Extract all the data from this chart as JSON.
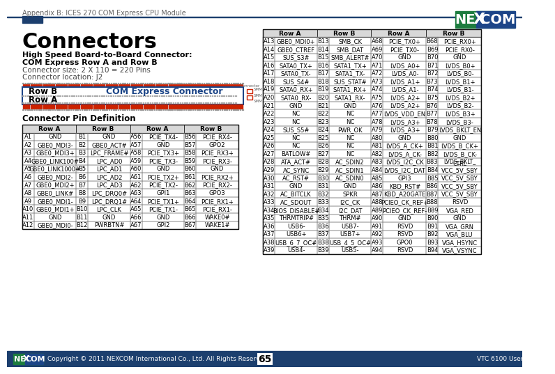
{
  "page_header": "Appendix B: ICES 270 COM Express CPU Module",
  "title": "Connectors",
  "subtitle1": "High Speed Board-to-Board Connector:",
  "subtitle2": "COM Express Row A and Row B",
  "subtitle3": "Connector size: 2 X 110 = 220 Pins",
  "subtitle4": "Connector location: J2",
  "connector_label": "COM Express Connector",
  "connector_row_b": "Row B",
  "connector_row_a": "Row A",
  "section_title": "Connector Pin Definition",
  "copyright": "Copyright © 2011 NEXCOM International Co., Ltd. All Rights Reserved.",
  "page_num": "65",
  "product": "VTC 6100 User Manual",
  "left_table": [
    [
      "A1",
      "GND",
      "B1",
      "GND",
      "A56",
      "PCIE_TX4-",
      "B56",
      "PCIE_RX4-"
    ],
    [
      "A2",
      "GBE0_MDI3-",
      "B2",
      "GBE0_ACT#",
      "A57",
      "GND",
      "B57",
      "GPO2"
    ],
    [
      "A3",
      "GBE0_MDI3+",
      "B3",
      "LPC_FRAME#",
      "A58",
      "PCIE_TX3+",
      "B58",
      "PCIE_RX3+"
    ],
    [
      "A4",
      "GBE0_LINK100#",
      "B4",
      "LPC_AD0",
      "A59",
      "PCIE_TX3-",
      "B59",
      "PCIE_RX3-"
    ],
    [
      "A5",
      "GBE0_LINK1000#",
      "B5",
      "LPC_AD1",
      "A60",
      "GND",
      "B60",
      "GND"
    ],
    [
      "A6",
      "GBE0_MDI2-",
      "B6",
      "LPC_AD2",
      "A61",
      "PCIE_TX2+",
      "B61",
      "PCIE_RX2+"
    ],
    [
      "A7",
      "GBE0_MDI2+",
      "B7",
      "LPC_AD3",
      "A62",
      "PCIE_TX2-",
      "B62",
      "PCIE_RX2-"
    ],
    [
      "A8",
      "GBE0_LINK#",
      "B8",
      "LPC_DRQ0#",
      "A63",
      "GPI1",
      "B63",
      "GPO3"
    ],
    [
      "A9",
      "GBE0_MDI1-",
      "B9",
      "LPC_DRQ1#",
      "A64",
      "PCIE_TX1+",
      "B64",
      "PCIE_RX1+"
    ],
    [
      "A10",
      "GBE0_MDI1+",
      "B10",
      "LPC_CLK",
      "A65",
      "PCIE_TX1-",
      "B65",
      "PCIE_RX1-"
    ],
    [
      "A11",
      "GND",
      "B11",
      "GND",
      "A66",
      "GND",
      "B66",
      "WAKE0#"
    ],
    [
      "A12",
      "GBE0_MDI0-",
      "B12",
      "PWRBTN#",
      "A67",
      "GPI2",
      "B67",
      "WAKE1#"
    ]
  ],
  "right_table": [
    [
      "A13",
      "GBE0_MDI0+",
      "B13",
      "SMB_CK",
      "A68",
      "PCIE_TX0+",
      "B68",
      "PCIE_RX0+"
    ],
    [
      "A14",
      "GBE0_CTREF",
      "B14",
      "SMB_DAT",
      "A69",
      "PCIE_TX0-",
      "B69",
      "PCIE_RX0-"
    ],
    [
      "A15",
      "SUS_S3#",
      "B15",
      "SMB_ALERT#",
      "A70",
      "GND",
      "B70",
      "GND"
    ],
    [
      "A16",
      "SATA0_TX+",
      "B16",
      "SATA1_TX+",
      "A71",
      "LVDS_A0+",
      "B71",
      "LVDS_B0+"
    ],
    [
      "A17",
      "SATA0_TX-",
      "B17",
      "SATA1_TX-",
      "A72",
      "LVDS_A0-",
      "B72",
      "LVDS_B0-"
    ],
    [
      "A18",
      "SUS_S4#",
      "B18",
      "SUS_STAT#",
      "A73",
      "LVDS_A1+",
      "B73",
      "LVDS_B1+"
    ],
    [
      "A19",
      "SATA0_RX+",
      "B19",
      "SATA1_RX+",
      "A74",
      "LVDS_A1-",
      "B74",
      "LVDS_B1-"
    ],
    [
      "A20",
      "SATA0_RX-",
      "B20",
      "SATA1_RX-",
      "A75",
      "LVDS_A2+",
      "B75",
      "LVDS_B2+"
    ],
    [
      "A21",
      "GND",
      "B21",
      "GND",
      "A76",
      "LVDS_A2+",
      "B76",
      "LVDS_B2-"
    ],
    [
      "A22",
      "NC",
      "B22",
      "NC",
      "A77",
      "LVDS_VDD_EN",
      "B77",
      "LVDS_B3+"
    ],
    [
      "A23",
      "NC",
      "B23",
      "NC",
      "A78",
      "LVDS_A3+",
      "B78",
      "LVDS_B3-"
    ],
    [
      "A24",
      "SUS_S5#",
      "B24",
      "PWR_OK",
      "A79",
      "LVDS_A3+",
      "B79",
      "LVDS_BKLT_EN"
    ],
    [
      "A25",
      "NC",
      "B25",
      "NC",
      "A80",
      "GND",
      "B80",
      "GND"
    ],
    [
      "A26",
      "NC",
      "B26",
      "NC",
      "A81",
      "LVDS_A_CK+",
      "B81",
      "LVDS_B_CK+"
    ],
    [
      "A27",
      "BATLOW#",
      "B27",
      "NC",
      "A82",
      "LVDS_A_CK-",
      "B82",
      "LVDS_B_CK-"
    ],
    [
      "A28",
      "ATA_ACT#",
      "B28",
      "AC_SDIN2",
      "A83",
      "LVDS_I2C_CK",
      "B83",
      "LVDS_BKLT_\nCTRL"
    ],
    [
      "A29",
      "AC_SYNC",
      "B29",
      "AC_SDIN1",
      "A84",
      "LVDS_I2C_DAT",
      "B84",
      "VCC_5V_SBY"
    ],
    [
      "A30",
      "AC_RST#",
      "B30",
      "AC_SDIN0",
      "A85",
      "GPI3",
      "B85",
      "VCC_5V_SBY"
    ],
    [
      "A31",
      "GND",
      "B31",
      "GND",
      "A86",
      "KBD_RST#",
      "B86",
      "VCC_5V_SBY"
    ],
    [
      "A32",
      "AC_BITCLK",
      "B32",
      "SPKR",
      "A87",
      "KBD_A20GATE",
      "B87",
      "VCC_5V_SBY"
    ],
    [
      "A33",
      "AC_SDOUT",
      "B33",
      "I2C_CK",
      "A88",
      "PCIEO_CK_REF+",
      "B88",
      "RSVD"
    ],
    [
      "A34",
      "BIOS_DISABLE#",
      "B34",
      "I2C_DAT",
      "A89",
      "PCIEO_CK_REF-",
      "B89",
      "VGA_RED"
    ],
    [
      "A35",
      "THRMTRIP#",
      "B35",
      "THRM#",
      "A90",
      "GND",
      "B90",
      "GND"
    ],
    [
      "A36",
      "USB6-",
      "B36",
      "USB7-",
      "A91",
      "RSVD",
      "B91",
      "VGA_GRN"
    ],
    [
      "A37",
      "USB6+",
      "B37",
      "USB7+",
      "A92",
      "RSVD",
      "B92",
      "VGA_BLU"
    ],
    [
      "A38",
      "USB_6_7_OC#",
      "B38",
      "USB_4_5_OC#",
      "A93",
      "GPO0",
      "B93",
      "VGA_HSYNC"
    ],
    [
      "A39",
      "USB4-",
      "B39",
      "USB5-",
      "A94",
      "RSVD",
      "B94",
      "VGA_VSYNC"
    ]
  ]
}
